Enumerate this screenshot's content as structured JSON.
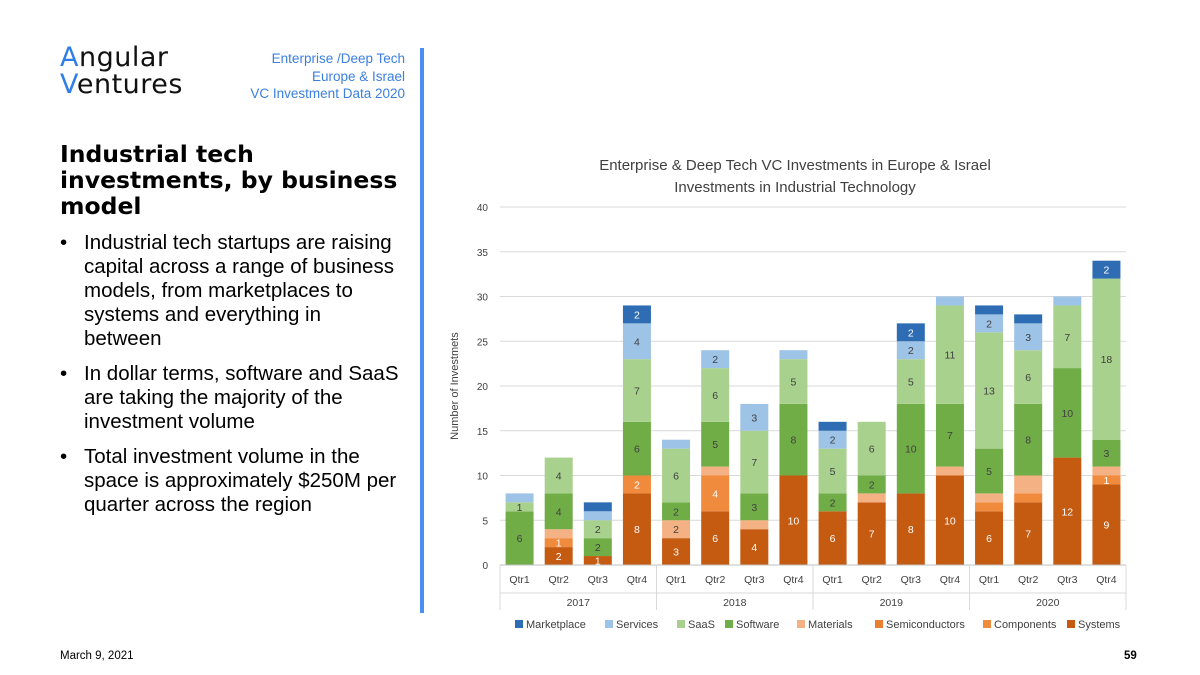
{
  "logo": {
    "line1_first": "A",
    "line1_rest": "ngular",
    "line2_first": "V",
    "line2_rest": "entures"
  },
  "tagline": [
    "Enterprise /Deep Tech",
    "Europe & Israel",
    "VC Investment Data 2020"
  ],
  "heading": "Industrial tech investments, by business model",
  "bullets": [
    "Industrial tech startups are raising capital across a range of business models, from marketplaces to systems and everything in between",
    "In dollar terms, software and SaaS are taking the majority of the investment volume",
    "Total investment volume in the space is approximately $250M per quarter across the region"
  ],
  "footer": {
    "date": "March 9, 2021",
    "page": "59"
  },
  "colors": {
    "Marketplace": "#2e6db4",
    "Services": "#9dc3e6",
    "SaaS": "#a9d18e",
    "Software": "#70ad47",
    "Materials": "#f4b183",
    "Semiconductors": "#ed7d31",
    "Components": "#f08a3c",
    "Systems": "#c55a11"
  },
  "chart_data": {
    "type": "bar",
    "stacked": true,
    "title": "Enterprise & Deep Tech VC Investments in Europe & Israel",
    "subtitle": "Investments in Industrial Technology",
    "xlabel": "",
    "ylabel": "Number of Investmets",
    "ylim": [
      0,
      40
    ],
    "yticks": [
      0,
      5,
      10,
      15,
      20,
      25,
      30,
      35,
      40
    ],
    "categories": [
      "Qtr1",
      "Qtr2",
      "Qtr3",
      "Qtr4",
      "Qtr1",
      "Qtr2",
      "Qtr3",
      "Qtr4",
      "Qtr1",
      "Qtr2",
      "Qtr3",
      "Qtr4",
      "Qtr1",
      "Qtr2",
      "Qtr3",
      "Qtr4"
    ],
    "groups": [
      {
        "label": "2017",
        "count": 4
      },
      {
        "label": "2018",
        "count": 4
      },
      {
        "label": "2019",
        "count": 4
      },
      {
        "label": "2020",
        "count": 4
      }
    ],
    "legend_position": "bottom",
    "series": [
      {
        "name": "Systems",
        "values": [
          0,
          2,
          1,
          8,
          3,
          6,
          4,
          10,
          6,
          7,
          8,
          10,
          6,
          7,
          12,
          9
        ]
      },
      {
        "name": "Components",
        "values": [
          0,
          1,
          0,
          2,
          0,
          4,
          0,
          0,
          0,
          0,
          0,
          0,
          1,
          1,
          0,
          1
        ]
      },
      {
        "name": "Semiconductors",
        "values": [
          0,
          0,
          0,
          0,
          0,
          0,
          0,
          0,
          0,
          0,
          0,
          0,
          0,
          0,
          0,
          0
        ]
      },
      {
        "name": "Materials",
        "values": [
          0,
          1,
          0,
          0,
          2,
          1,
          1,
          0,
          0,
          1,
          0,
          1,
          1,
          2,
          0,
          1
        ]
      },
      {
        "name": "Software",
        "values": [
          6,
          4,
          2,
          6,
          2,
          5,
          3,
          8,
          2,
          2,
          10,
          7,
          5,
          8,
          10,
          3
        ]
      },
      {
        "name": "SaaS",
        "values": [
          1,
          4,
          2,
          7,
          6,
          6,
          7,
          5,
          5,
          6,
          5,
          11,
          13,
          6,
          7,
          18
        ]
      },
      {
        "name": "Services",
        "values": [
          1,
          0,
          1,
          4,
          1,
          2,
          3,
          1,
          2,
          0,
          2,
          1,
          2,
          3,
          1,
          0
        ]
      },
      {
        "name": "Marketplace",
        "values": [
          0,
          0,
          1,
          2,
          0,
          0,
          0,
          0,
          1,
          0,
          2,
          0,
          1,
          1,
          0,
          2
        ]
      }
    ],
    "data_labels": [
      {
        "series": "Systems",
        "labels": [
          null,
          "2",
          "1",
          "8",
          "3",
          "6",
          "4",
          "10",
          "6",
          "7",
          "8",
          "10",
          "6",
          "7",
          "12",
          "9"
        ]
      },
      {
        "series": "Components",
        "labels": [
          null,
          "1",
          null,
          "2",
          null,
          "4",
          null,
          null,
          null,
          null,
          null,
          null,
          null,
          null,
          null,
          "1"
        ]
      },
      {
        "series": "Materials",
        "labels": [
          null,
          null,
          null,
          null,
          "2",
          null,
          null,
          null,
          null,
          null,
          null,
          null,
          null,
          null,
          null,
          null
        ]
      },
      {
        "series": "Software",
        "labels": [
          "6",
          "4",
          "2",
          "6",
          "2",
          "5",
          "3",
          "8",
          "2",
          "2",
          "10",
          "7",
          "5",
          "8",
          "10",
          "3"
        ]
      },
      {
        "series": "SaaS",
        "labels": [
          "1",
          "4",
          "2",
          "7",
          "6",
          "6",
          "7",
          "5",
          "5",
          "6",
          "5",
          "11",
          "13",
          "6",
          "7",
          "18"
        ]
      },
      {
        "series": "Services",
        "labels": [
          null,
          null,
          null,
          "4",
          null,
          "2",
          "3",
          null,
          "2",
          null,
          "2",
          null,
          "2",
          "3",
          null,
          null
        ]
      },
      {
        "series": "Marketplace",
        "labels": [
          null,
          null,
          null,
          "2",
          null,
          null,
          null,
          null,
          null,
          null,
          "2",
          null,
          null,
          null,
          null,
          "2"
        ]
      }
    ],
    "legend_order": [
      "Marketplace",
      "Services",
      "SaaS",
      "Software",
      "Materials",
      "Semiconductors",
      "Components",
      "Systems"
    ]
  }
}
